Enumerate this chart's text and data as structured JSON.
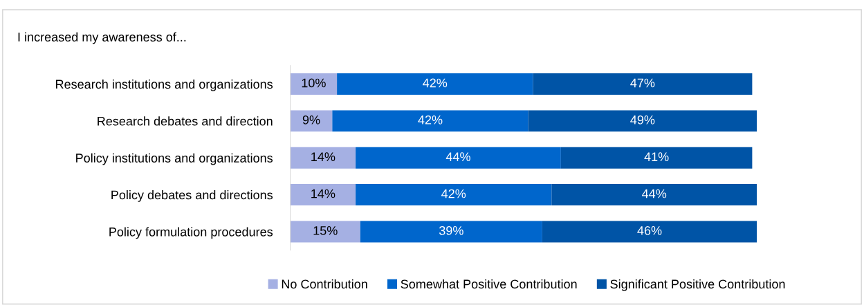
{
  "chart_data": {
    "type": "bar",
    "orientation": "horizontal",
    "stacked": true,
    "title": "I increased my awareness of...",
    "categories": [
      "Research institutions and organizations",
      "Research debates and direction",
      "Policy institutions and organizations",
      "Policy debates and directions",
      "Policy formulation procedures"
    ],
    "series": [
      {
        "name": "No Contribution",
        "color": "#a5b0e3",
        "values": [
          10,
          9,
          14,
          14,
          15
        ],
        "value_labels": [
          "10%",
          "9%",
          "14%",
          "14%",
          "15%"
        ]
      },
      {
        "name": "Somewhat Positive Contribution",
        "color": "#0066cc",
        "values": [
          42,
          42,
          44,
          42,
          39
        ],
        "value_labels": [
          "42%",
          "42%",
          "44%",
          "42%",
          "39%"
        ]
      },
      {
        "name": "Significant Positive Contribution",
        "color": "#0054a6",
        "values": [
          47,
          49,
          41,
          44,
          46
        ],
        "value_labels": [
          "47%",
          "49%",
          "41%",
          "44%",
          "46%"
        ]
      }
    ],
    "legend": "bottom",
    "grid": false
  }
}
